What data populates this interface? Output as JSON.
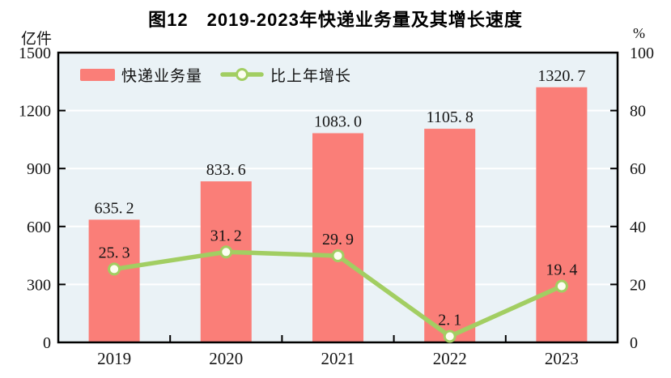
{
  "title": "图12　2019-2023年快递业务量及其增长速度",
  "left_axis_unit": "亿件",
  "right_axis_unit": "%",
  "legend": {
    "bar_label": "快递业务量",
    "line_label": "比上年增长"
  },
  "colors": {
    "bar": "#FA7E78",
    "line": "#A2CE62",
    "marker_fill": "#FCFEF0",
    "plot_bg": "#EAF2F6",
    "grid": "#FFFFFF",
    "border": "#000000",
    "text": "#151515"
  },
  "chart_data": {
    "type": "bar",
    "subtype": "bar+line combo, dual axis",
    "title": "图12　2019-2023年快递业务量及其增长速度",
    "categories": [
      "2019",
      "2020",
      "2021",
      "2022",
      "2023"
    ],
    "series": [
      {
        "name": "快递业务量",
        "type": "bar",
        "axis": "left",
        "unit": "亿件",
        "values": [
          635.2,
          833.6,
          1083.0,
          1105.8,
          1320.7
        ]
      },
      {
        "name": "比上年增长",
        "type": "line",
        "axis": "right",
        "unit": "%",
        "values": [
          25.3,
          31.2,
          29.9,
          2.1,
          19.4
        ]
      }
    ],
    "left_axis": {
      "label": "亿件",
      "min": 0,
      "max": 1500,
      "ticks": [
        0,
        300,
        600,
        900,
        1200,
        1500
      ]
    },
    "right_axis": {
      "label": "%",
      "min": 0,
      "max": 100,
      "ticks": [
        0,
        20,
        40,
        60,
        80,
        100
      ]
    },
    "grid": "horizontal white gridlines on light blue plot background",
    "legend_position": "top-left inside plot",
    "data_labels": "shown above bars and above line markers"
  }
}
